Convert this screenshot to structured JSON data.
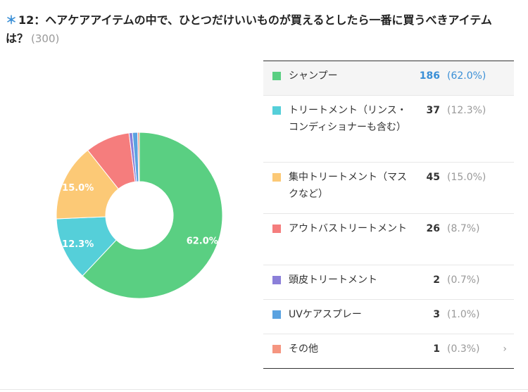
{
  "question": {
    "number_label": "12：ヘアケアアイテムの中で、ひとつだけいいものが買えるとしたら一番に買うべきアイテムは？",
    "count": "(300)",
    "star": "＊"
  },
  "colors": {
    "accent": "#3a8fd6"
  },
  "chart_data": {
    "type": "pie",
    "style": "donut",
    "categories": [
      "シャンプー",
      "トリートメント（リンス・コンディショナーも含む）",
      "集中トリートメント（マスクなど）",
      "アウトバストリートメント",
      "頭皮トリートメント",
      "UVケアスプレー",
      "その他"
    ],
    "values": [
      186,
      37,
      45,
      26,
      2,
      3,
      1
    ],
    "percent_labels": [
      "(62.0%)",
      "(12.3%)",
      "(15.0%)",
      "(8.7%)",
      "(0.7%)",
      "(1.0%)",
      "(0.3%)"
    ],
    "slice_labels": [
      "62.0%",
      "12.3%",
      "15.0%",
      "",
      "",
      "",
      ""
    ],
    "colors": [
      "#5acf82",
      "#55cfd9",
      "#fcc976",
      "#f57d7d",
      "#8b7fd9",
      "#5aa2e0",
      "#f59580"
    ],
    "total": 300,
    "legend_placement": "right",
    "highlighted": 0
  }
}
